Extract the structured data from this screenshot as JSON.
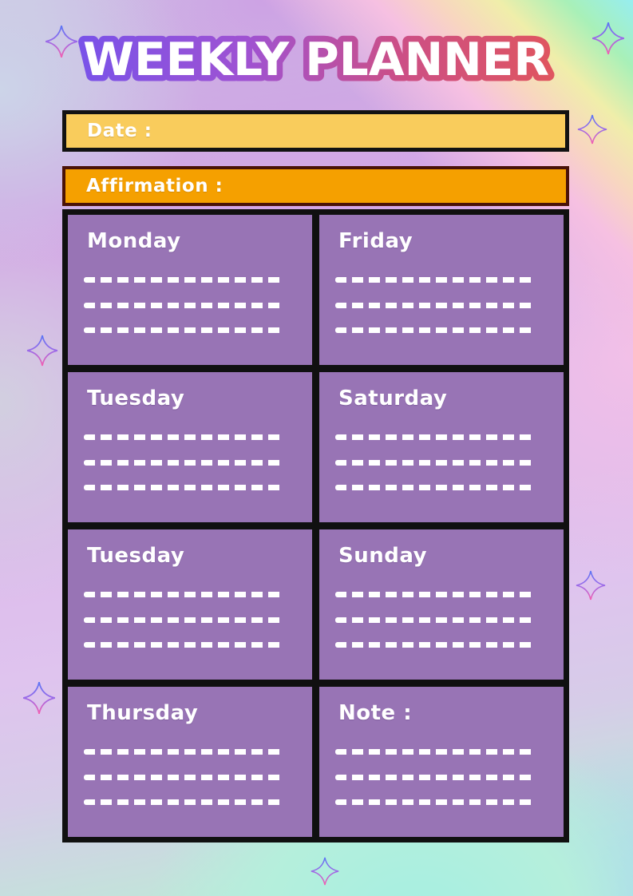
{
  "title": "WEEKLY PLANNER",
  "date_bar": {
    "label": "Date :"
  },
  "affirmation_bar": {
    "label": "Affirmation :"
  },
  "cells": [
    {
      "label": "Monday",
      "lines": 3
    },
    {
      "label": "Friday",
      "lines": 3
    },
    {
      "label": "Tuesday",
      "lines": 3
    },
    {
      "label": "Saturday",
      "lines": 3
    },
    {
      "label": "Tuesday",
      "lines": 3
    },
    {
      "label": "Sunday",
      "lines": 3
    },
    {
      "label": "Thursday",
      "lines": 3
    },
    {
      "label": "Note :",
      "lines": 3
    }
  ],
  "decorations": {
    "sparkle_icon_count": 7
  },
  "colors": {
    "date_bar_fill": "#F9CC5C",
    "date_bar_border": "#121212",
    "affirmation_bar_fill": "#F5A000",
    "affirmation_bar_border": "#4A1208",
    "card_fill": "#9874B5",
    "grid_border": "#101010",
    "label_text": "#FFFFFF",
    "title_fill": "#FFFFFF",
    "title_stroke_gradient": [
      "#7A52E8",
      "#9F52D2",
      "#CC4F86",
      "#DF5560"
    ],
    "sparkle_gradient": [
      "#5B76F5",
      "#9B6AE8",
      "#F55FB0"
    ]
  }
}
